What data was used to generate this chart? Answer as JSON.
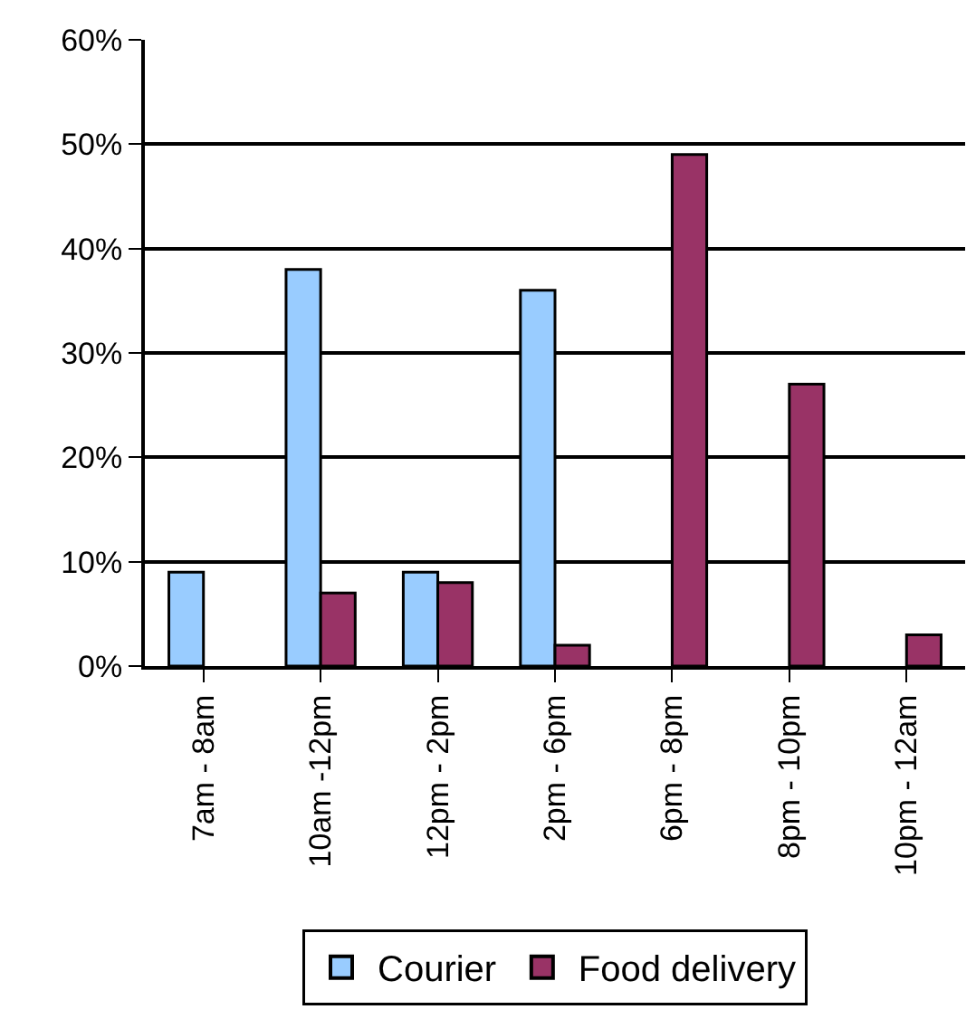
{
  "chart_data": {
    "type": "bar",
    "categories": [
      "7am - 8am",
      "10am -12pm",
      "12pm - 2pm",
      "2pm - 6pm",
      "6pm - 8pm",
      "8pm - 10pm",
      "10pm - 12am"
    ],
    "series": [
      {
        "name": "Courier",
        "color": "#99ccff",
        "values": [
          9,
          38,
          9,
          36,
          null,
          null,
          null
        ]
      },
      {
        "name": "Food delivery",
        "color": "#993366",
        "values": [
          null,
          7,
          8,
          2,
          49,
          27,
          3
        ]
      }
    ],
    "ylim": [
      0,
      60
    ],
    "yticks": [
      {
        "value": 0,
        "label": "0%"
      },
      {
        "value": 10,
        "label": "10%"
      },
      {
        "value": 20,
        "label": "20%"
      },
      {
        "value": 30,
        "label": "30%"
      },
      {
        "value": 40,
        "label": "40%"
      },
      {
        "value": 50,
        "label": "50%"
      },
      {
        "value": 60,
        "label": "60%"
      }
    ],
    "grid": "y",
    "legend": "bottom"
  }
}
